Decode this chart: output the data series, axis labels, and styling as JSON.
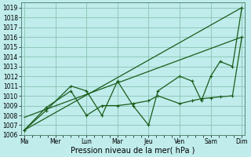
{
  "background_color": "#c0ecec",
  "grid_color": "#90c8b8",
  "line_color": "#1a5c1a",
  "title": "Pression niveau de la mer( hPa )",
  "ylim": [
    1006,
    1019.5
  ],
  "ytick_min": 1006,
  "ytick_max": 1019,
  "xlim": [
    -0.1,
    7.1
  ],
  "x_labels": [
    "Ma",
    "Mer",
    "Lun",
    "Mar",
    "Jeu",
    "Ven",
    "Sam",
    "Dim"
  ],
  "x_positions": [
    0,
    1,
    2,
    3,
    4,
    5,
    6,
    7
  ],
  "series": [
    {
      "x": [
        0,
        7
      ],
      "y": [
        1006.5,
        1019.0
      ],
      "marker": false
    },
    {
      "x": [
        0,
        7
      ],
      "y": [
        1007.8,
        1016.0
      ],
      "marker": false
    },
    {
      "x": [
        0,
        0.7,
        1.5,
        2.0,
        2.5,
        3.0,
        3.5,
        4.0,
        4.3,
        5.0,
        5.4,
        5.7,
        6.0,
        6.3,
        6.7,
        7.0
      ],
      "y": [
        1006.5,
        1008.5,
        1011.0,
        1010.5,
        1008.0,
        1011.5,
        1009.0,
        1007.0,
        1010.5,
        1012.0,
        1011.5,
        1009.5,
        1012.0,
        1013.5,
        1013.0,
        1019.0
      ],
      "marker": true
    },
    {
      "x": [
        0,
        0.7,
        1.5,
        2.0,
        2.5,
        3.0,
        3.5,
        4.0,
        4.3,
        5.0,
        5.4,
        5.7,
        6.0,
        6.3,
        6.7,
        7.0
      ],
      "y": [
        1006.5,
        1008.8,
        1010.5,
        1008.0,
        1009.0,
        1009.0,
        1009.2,
        1009.5,
        1010.0,
        1009.2,
        1009.5,
        1009.7,
        1009.8,
        1009.9,
        1010.0,
        1016.0
      ],
      "marker": true
    }
  ],
  "title_fontsize": 7,
  "tick_fontsize": 5.5,
  "linewidth": 0.9,
  "markersize": 3.0
}
